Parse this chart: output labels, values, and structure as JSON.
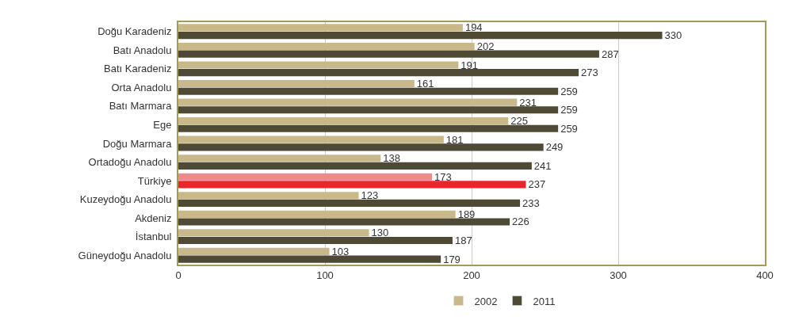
{
  "chart_data": {
    "type": "bar",
    "orientation": "horizontal",
    "categories": [
      "Doğu Karadeniz",
      "Batı Anadolu",
      "Batı Karadeniz",
      "Orta Anadolu",
      "Batı Marmara",
      "Ege",
      "Doğu Marmara",
      "Ortadoğu Anadolu",
      "Türkiye",
      "Kuzeydoğu Anadolu",
      "Akdeniz",
      "İstanbul",
      "Güneydoğu Anadolu"
    ],
    "series": [
      {
        "name": "2002",
        "color": "#c9b98a",
        "colors": [
          "#c9b98a",
          "#c9b98a",
          "#c9b98a",
          "#c9b98a",
          "#c9b98a",
          "#c9b98a",
          "#c9b98a",
          "#c9b98a",
          "#f08a8a",
          "#c9b98a",
          "#c9b98a",
          "#c9b98a",
          "#c9b98a"
        ],
        "values": [
          194,
          202,
          191,
          161,
          231,
          225,
          181,
          138,
          173,
          123,
          189,
          130,
          103
        ]
      },
      {
        "name": "2011",
        "color": "#4f4a35",
        "colors": [
          "#4f4a35",
          "#4f4a35",
          "#4f4a35",
          "#4f4a35",
          "#4f4a35",
          "#4f4a35",
          "#4f4a35",
          "#4f4a35",
          "#e8262c",
          "#4f4a35",
          "#4f4a35",
          "#4f4a35",
          "#4f4a35"
        ],
        "values": [
          330,
          287,
          273,
          259,
          259,
          259,
          249,
          241,
          237,
          233,
          226,
          187,
          179
        ]
      }
    ],
    "xlim": [
      0,
      400
    ],
    "xticks": [
      0,
      100,
      200,
      300,
      400
    ],
    "grid": "x",
    "legend": "bottom",
    "data_labels": true
  }
}
